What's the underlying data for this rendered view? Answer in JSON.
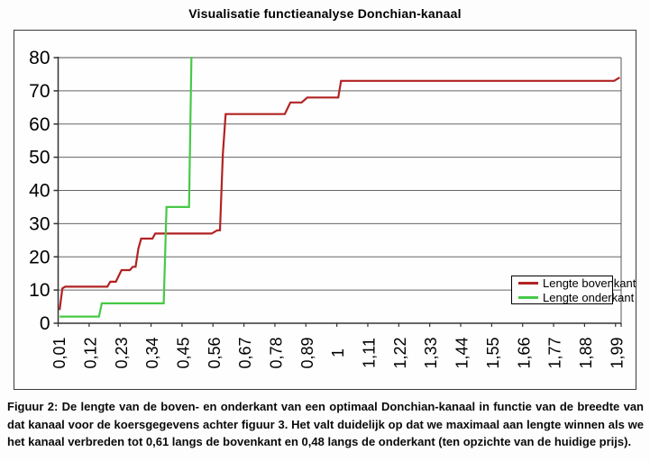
{
  "title": "Visualisatie functieanalyse Donchian-kanaal",
  "caption": "Figuur 2: De lengte van de boven- en onderkant van een optimaal Donchian-kanaal in functie van de breedte van dat kanaal voor de koersgegevens achter figuur 3. Het valt duidelijk op dat we maximaal aan lengte winnen als we het kanaal verbreden tot 0,61 langs de bovenkant en 0,48 langs de onderkant (ten opzichte van de huidige prijs).",
  "legend": {
    "items": [
      {
        "label": "Lengte bovenkant",
        "color": "#b22222"
      },
      {
        "label": "Lengte onderkant",
        "color": "#47c947"
      }
    ]
  },
  "colors": {
    "grid": "#666666",
    "axis": "#333333",
    "plot_top_border": "#a8a8a8",
    "plot_right_border": "#555555",
    "frame_border": "#3a3a3a"
  },
  "chart_data": {
    "type": "line",
    "title": "Visualisatie functieanalyse Donchian-kanaal",
    "xlabel": "",
    "ylabel": "",
    "ylim": [
      0,
      80
    ],
    "y_tick_step": 10,
    "y_tick_labels": [
      "0",
      "10",
      "20",
      "30",
      "40",
      "50",
      "60",
      "70",
      "80"
    ],
    "x_range": [
      0.01,
      2.0
    ],
    "x_step": 0.01,
    "x_tick_labels": [
      "0,01",
      "0,12",
      "0,23",
      "0,34",
      "0,45",
      "0,56",
      "0,67",
      "0,78",
      "0,89",
      "1",
      "1,11",
      "1,22",
      "1,33",
      "1,44",
      "1,55",
      "1,66",
      "1,77",
      "1,88",
      "1,99"
    ],
    "x_label_interval": 11,
    "grid": true,
    "legend_position": "inside-right",
    "series": [
      {
        "name": "Lengte bovenkant",
        "color": "#b22222",
        "points": [
          [
            0.01,
            4
          ],
          [
            0.02,
            10.5
          ],
          [
            0.03,
            11
          ],
          [
            0.18,
            11
          ],
          [
            0.19,
            12.5
          ],
          [
            0.21,
            12.5
          ],
          [
            0.23,
            16
          ],
          [
            0.26,
            16
          ],
          [
            0.27,
            17
          ],
          [
            0.28,
            17
          ],
          [
            0.29,
            22.5
          ],
          [
            0.3,
            25.5
          ],
          [
            0.34,
            25.5
          ],
          [
            0.35,
            27
          ],
          [
            0.55,
            27
          ],
          [
            0.57,
            28
          ],
          [
            0.58,
            28
          ],
          [
            0.59,
            51
          ],
          [
            0.6,
            63
          ],
          [
            0.81,
            63
          ],
          [
            0.83,
            66.5
          ],
          [
            0.87,
            66.5
          ],
          [
            0.89,
            68
          ],
          [
            1.0,
            68
          ],
          [
            1.01,
            73
          ],
          [
            1.98,
            73
          ],
          [
            2.0,
            74
          ]
        ]
      },
      {
        "name": "Lengte onderkant",
        "color": "#47c947",
        "points": [
          [
            0.01,
            2
          ],
          [
            0.15,
            2
          ],
          [
            0.16,
            6
          ],
          [
            0.38,
            6
          ],
          [
            0.39,
            35
          ],
          [
            0.47,
            35
          ],
          [
            0.48,
            88
          ]
        ],
        "off_scale_above_ylim_from_x": 0.48
      }
    ]
  }
}
